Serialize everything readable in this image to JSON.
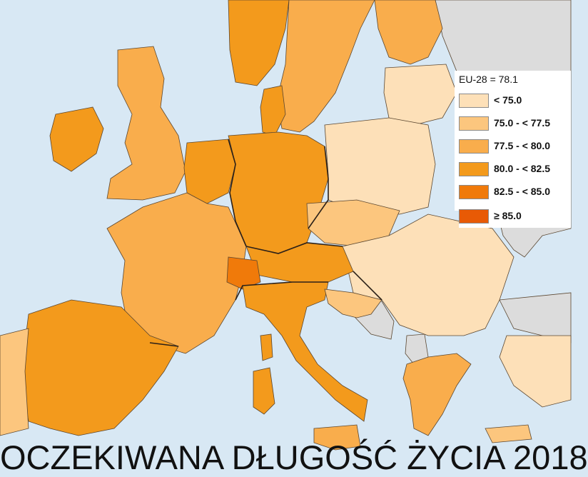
{
  "map": {
    "title": "OCZEKIWANA DŁUGOŚĆ ŻYCIA 2018",
    "eu_average": "EU-28 = 78.1",
    "legend": [
      {
        "label": "< 75.0",
        "color": "#fde0b8"
      },
      {
        "label": "75.0 - < 77.5",
        "color": "#fcc67e"
      },
      {
        "label": "77.5 - < 80.0",
        "color": "#f9ad4c"
      },
      {
        "label": "80.0 - < 82.5",
        "color": "#f39a1c"
      },
      {
        "label": "82.5 - < 85.0",
        "color": "#f07a0a"
      },
      {
        "label": "≥ 85.0",
        "color": "#e85a05"
      }
    ],
    "colors": {
      "sea": "#d8e8f4",
      "non_eu_land": "#dcdcdc"
    }
  }
}
